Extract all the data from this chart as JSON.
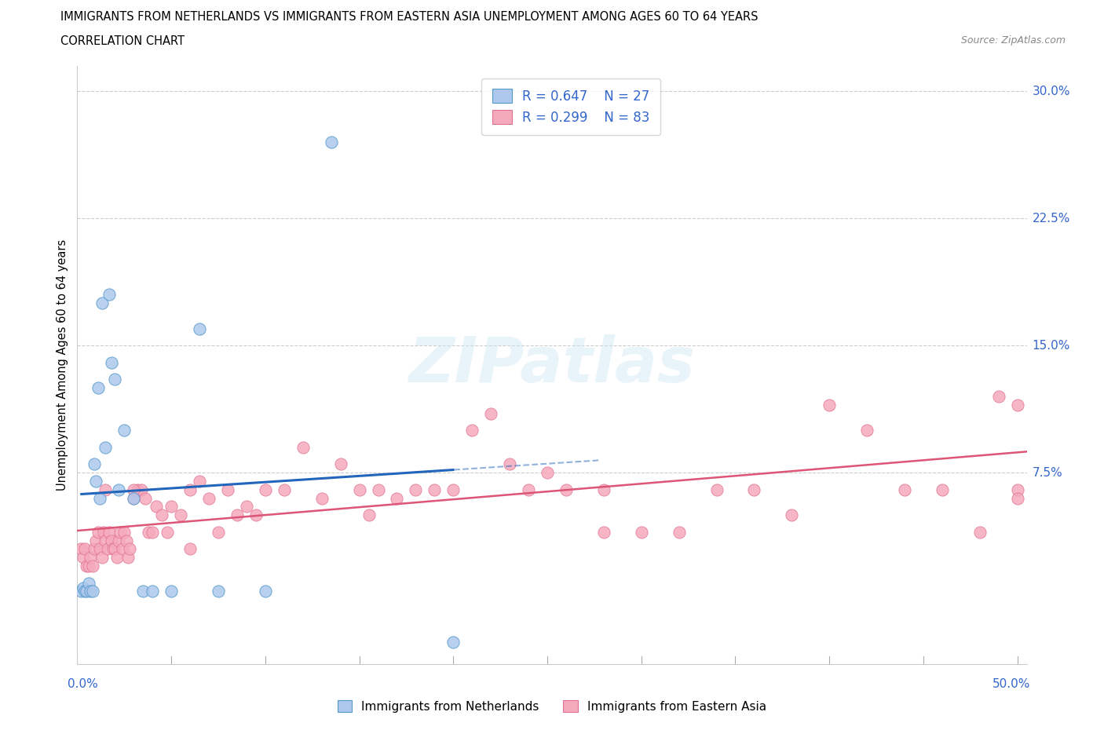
{
  "title_line1": "IMMIGRANTS FROM NETHERLANDS VS IMMIGRANTS FROM EASTERN ASIA UNEMPLOYMENT AMONG AGES 60 TO 64 YEARS",
  "title_line2": "CORRELATION CHART",
  "source": "Source: ZipAtlas.com",
  "ylabel": "Unemployment Among Ages 60 to 64 years",
  "watermark": "ZIPatlas",
  "R_nl": "0.647",
  "N_nl": "27",
  "R_ea": "0.299",
  "N_ea": "83",
  "color_nl_fill": "#adc8ec",
  "color_nl_edge": "#5599cc",
  "color_nl_line": "#2266bb",
  "color_ea_fill": "#f5aabc",
  "color_ea_edge": "#e07090",
  "color_ea_line": "#dd5577",
  "color_axis_text": "#3366cc",
  "color_grid": "#cccccc",
  "xmin": 0.0,
  "xmax": 0.505,
  "ymin": -0.038,
  "ymax": 0.315,
  "ytick_values": [
    0.075,
    0.15,
    0.225,
    0.3
  ],
  "ytick_labels": [
    "7.5%",
    "15.0%",
    "22.5%",
    "30.0%"
  ],
  "xtick_positions": [
    0.0,
    0.05,
    0.1,
    0.15,
    0.2,
    0.25,
    0.3,
    0.35,
    0.4,
    0.45,
    0.5
  ],
  "nl_x": [
    0.002,
    0.003,
    0.004,
    0.005,
    0.006,
    0.007,
    0.008,
    0.009,
    0.01,
    0.011,
    0.012,
    0.013,
    0.015,
    0.017,
    0.018,
    0.02,
    0.022,
    0.025,
    0.03,
    0.035,
    0.04,
    0.05,
    0.065,
    0.075,
    0.1,
    0.135,
    0.2
  ],
  "nl_y": [
    0.005,
    0.007,
    0.005,
    0.005,
    0.01,
    0.005,
    0.005,
    0.08,
    0.07,
    0.125,
    0.06,
    0.175,
    0.09,
    0.18,
    0.14,
    0.13,
    0.065,
    0.1,
    0.06,
    0.005,
    0.005,
    0.005,
    0.16,
    0.005,
    0.005,
    0.27,
    -0.025
  ],
  "ea_x": [
    0.002,
    0.003,
    0.004,
    0.005,
    0.006,
    0.007,
    0.008,
    0.009,
    0.01,
    0.011,
    0.012,
    0.013,
    0.014,
    0.015,
    0.016,
    0.017,
    0.018,
    0.019,
    0.02,
    0.021,
    0.022,
    0.023,
    0.024,
    0.025,
    0.026,
    0.027,
    0.028,
    0.03,
    0.032,
    0.034,
    0.036,
    0.038,
    0.04,
    0.042,
    0.045,
    0.048,
    0.05,
    0.055,
    0.06,
    0.065,
    0.07,
    0.075,
    0.08,
    0.085,
    0.09,
    0.1,
    0.11,
    0.12,
    0.13,
    0.14,
    0.15,
    0.16,
    0.17,
    0.18,
    0.19,
    0.2,
    0.21,
    0.22,
    0.23,
    0.24,
    0.25,
    0.26,
    0.28,
    0.3,
    0.32,
    0.34,
    0.36,
    0.38,
    0.4,
    0.42,
    0.44,
    0.46,
    0.48,
    0.49,
    0.5,
    0.5,
    0.015,
    0.03,
    0.06,
    0.095,
    0.155,
    0.28,
    0.5
  ],
  "ea_y": [
    0.03,
    0.025,
    0.03,
    0.02,
    0.02,
    0.025,
    0.02,
    0.03,
    0.035,
    0.04,
    0.03,
    0.025,
    0.04,
    0.035,
    0.03,
    0.04,
    0.035,
    0.03,
    0.03,
    0.025,
    0.035,
    0.04,
    0.03,
    0.04,
    0.035,
    0.025,
    0.03,
    0.06,
    0.065,
    0.065,
    0.06,
    0.04,
    0.04,
    0.055,
    0.05,
    0.04,
    0.055,
    0.05,
    0.065,
    0.07,
    0.06,
    0.04,
    0.065,
    0.05,
    0.055,
    0.065,
    0.065,
    0.09,
    0.06,
    0.08,
    0.065,
    0.065,
    0.06,
    0.065,
    0.065,
    0.065,
    0.1,
    0.11,
    0.08,
    0.065,
    0.075,
    0.065,
    0.065,
    0.04,
    0.04,
    0.065,
    0.065,
    0.05,
    0.115,
    0.1,
    0.065,
    0.065,
    0.04,
    0.12,
    0.115,
    0.065,
    0.065,
    0.065,
    0.03,
    0.05,
    0.05,
    0.04,
    0.06
  ]
}
